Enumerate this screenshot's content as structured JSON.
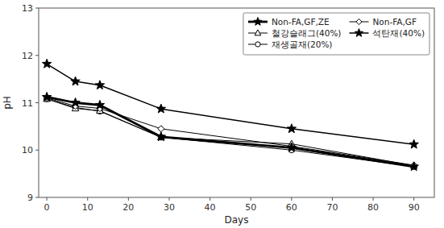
{
  "chart_data": {
    "type": "line",
    "x": [
      0,
      7,
      13,
      28,
      60,
      90
    ],
    "series": [
      {
        "name": "Non-FA,GF,ZE",
        "values": [
          11.12,
          11.0,
          10.95,
          10.28,
          10.05,
          9.65
        ],
        "color": "#000000",
        "marker": "star",
        "line_style": "solid"
      },
      {
        "name": "Non-FA,GF",
        "values": [
          11.1,
          10.93,
          10.88,
          10.45,
          10.08,
          9.68
        ],
        "color": "#000000",
        "marker": "diamond",
        "line_style": "solid"
      },
      {
        "name": "철강슬래그(40%)",
        "values": [
          11.08,
          10.88,
          10.83,
          10.27,
          10.13,
          9.67
        ],
        "color": "#000000",
        "marker": "triangle",
        "line_style": "solid"
      },
      {
        "name": "석탄재(40%)",
        "values": [
          11.82,
          11.45,
          11.37,
          10.87,
          10.45,
          10.12
        ],
        "color": "#000000",
        "marker": "star",
        "line_style": "solid"
      },
      {
        "name": "재생골재(20%)",
        "values": [
          11.08,
          10.9,
          10.82,
          10.27,
          10.0,
          9.65
        ],
        "color": "#000000",
        "marker": "circle",
        "line_style": "solid"
      }
    ],
    "x_label": "Days",
    "y_label": "pH",
    "xlim": [
      -2,
      95
    ],
    "ylim": [
      9,
      13
    ],
    "xticks": [
      0,
      10,
      20,
      30,
      40,
      50,
      60,
      70,
      80,
      90
    ],
    "yticks": [
      9,
      10,
      11,
      12,
      13
    ],
    "grid": false,
    "legend": "upper right"
  }
}
